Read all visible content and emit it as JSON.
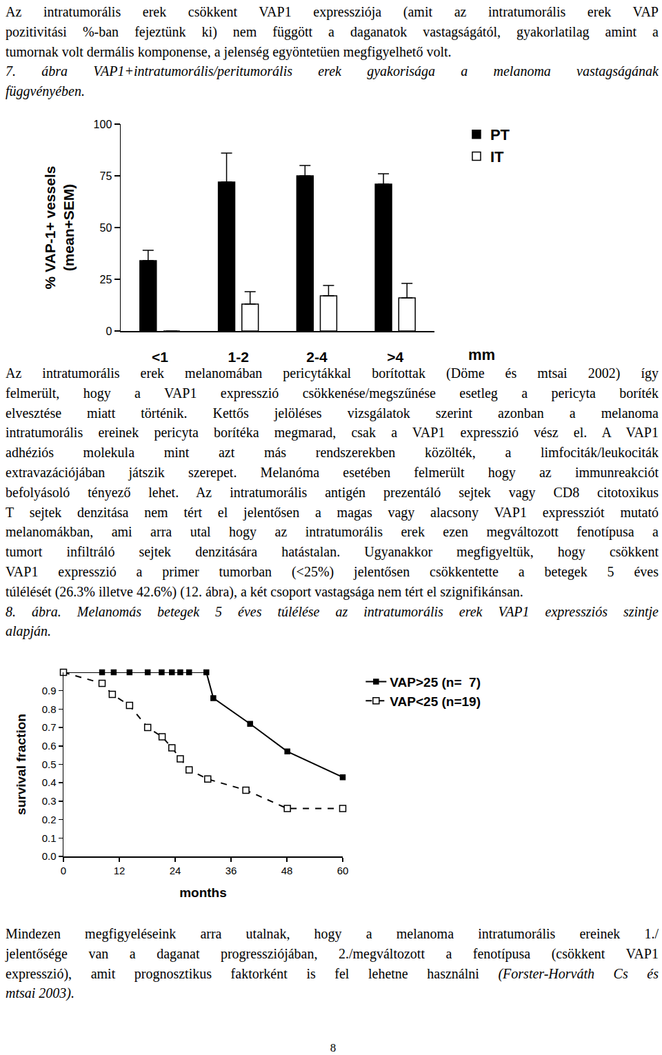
{
  "text_blocks": [
    {
      "paragraphs": [
        {
          "lines": [
            "Az intratumorális erek csökkent VAP1 expressziója (amit az intratumorális erek VAP",
            "pozitivitási %-ban fejeztünk ki) nem függött a daganatok vastagságától, gyakorlatilag amint a",
            "tumornak volt dermális komponense, a jelenség egyöntetüen megfigyelhető volt."
          ]
        },
        {
          "lines": [
            {
              "italic": "7. ábra VAP1+intratumorális/peritumorális erek gyakorisága a melanoma vastagságának"
            },
            {
              "italic": "függvényében."
            }
          ]
        }
      ]
    },
    {
      "paragraphs": [
        {
          "lines": [
            "Az intratumorális erek melanomában pericytákkal borítottak (Döme és mtsai 2002) így",
            "felmerült, hogy a VAP1 expresszió csökkenése/megszűnése esetleg a pericyta boríték",
            "elvesztése miatt történik. Kettős jelöléses vizsgálatok szerint azonban a melanoma",
            "intratumorális ereinek pericyta borítéka megmarad, csak a VAP1 expresszió vész el. A VAP1",
            "adhéziós molekula mint azt más rendszerekben közölték, a limfociták/leukociták",
            "extravazációjában játszik szerepet. Melanóma esetében felmerült hogy az immunreakciót",
            "befolyásoló tényező lehet. Az intratumorális antigén prezentáló sejtek vagy CD8 citotoxikus",
            "T sejtek denzitása nem tért el jelentősen a magas vagy alacsony VAP1 expressziót mutató",
            "melanomákban, ami arra utal hogy az intratumorális erek ezen megváltozott fenotípusa a",
            "tumort infiltráló sejtek denzitására hatástalan.  Ugyanakkor megfigyeltük, hogy csökkent",
            "VAP1 expresszió a primer tumorban (<25%) jelentősen csökkentette a betegek 5 éves",
            "túlélését (26.3% illetve 42.6%) (12. ábra), a két csoport vastagsága nem tért el szignifikánsan."
          ]
        },
        {
          "lines": [
            {
              "italic": "8. ábra. Melanomás betegek 5 éves túlélése az intratumorális erek VAP1 expressziós szintje"
            },
            {
              "italic": "alapján."
            }
          ]
        }
      ]
    },
    {
      "paragraphs": [
        {
          "lines": [
            "Mindezen megfigyeléseink arra utalnak, hogy a melanoma intratumorális ereinek 1./",
            "jelentősége van a daganat progressziójában, 2./megváltozott a fenotípusa (csökkent VAP1",
            [
              "expresszió), amit prognosztikus faktorként is fel lehetne használni ",
              {
                "italic": "(Forster-Horváth Cs és"
              }
            ],
            {
              "italic": "mtsai 2003)."
            }
          ]
        }
      ]
    }
  ],
  "chart_data": [
    {
      "type": "bar",
      "categories": [
        "<1",
        "1-2",
        "2-4",
        ">4"
      ],
      "series": [
        {
          "name": "PT",
          "color": "#000000",
          "values": [
            34,
            72,
            75,
            71
          ],
          "errors": [
            5,
            14,
            5,
            5
          ]
        },
        {
          "name": "IT",
          "color": "#ffffff",
          "values": [
            0,
            13,
            17,
            16
          ],
          "errors": [
            0,
            6,
            5,
            7
          ]
        }
      ],
      "ylabel": [
        "% VAP-1+ vessels",
        "(mean+SEM)"
      ],
      "xlabel": "mm",
      "ylim": [
        0,
        100
      ],
      "yticks": [
        0,
        25,
        50,
        75,
        100
      ],
      "grid": false,
      "legend": "top right"
    },
    {
      "type": "line",
      "series": [
        {
          "name": "VAP>25 (n=  7)",
          "color": "#000000",
          "marker": "filled square",
          "line_style": "solid",
          "x": [
            0,
            8.3,
            10.8,
            14.2,
            18.1,
            21.1,
            23.3,
            25.1,
            27.0,
            30.7,
            32.2,
            40.1,
            48.1,
            60
          ],
          "values": [
            1,
            1,
            1,
            1,
            1,
            1,
            1,
            1,
            1,
            1,
            0.86,
            0.72,
            0.57,
            0.43
          ]
        },
        {
          "name": "VAP<25 (n=19)",
          "color": "#000000",
          "marker": "open square",
          "line_style": "dashed",
          "x": [
            0,
            8.3,
            10.5,
            14.2,
            18.1,
            21.2,
            23.3,
            25.1,
            27.0,
            31.0,
            39.2,
            48.1,
            60
          ],
          "values": [
            1,
            0.94,
            0.88,
            0.82,
            0.7,
            0.65,
            0.59,
            0.53,
            0.47,
            0.42,
            0.36,
            0.26,
            0.26
          ]
        }
      ],
      "xlabel": "months",
      "ylabel": "survival fraction",
      "xlim": [
        0,
        60
      ],
      "xticks": [
        0,
        12,
        24,
        36,
        48,
        60
      ],
      "ylim": [
        0,
        1
      ],
      "yticks": [
        {
          "value": 0,
          "label": "0.0"
        },
        0.1,
        0.2,
        0.3,
        0.4,
        0.5,
        0.6,
        0.7,
        0.8,
        0.9
      ],
      "grid": false,
      "legend": "top right"
    }
  ],
  "page_number": "8"
}
